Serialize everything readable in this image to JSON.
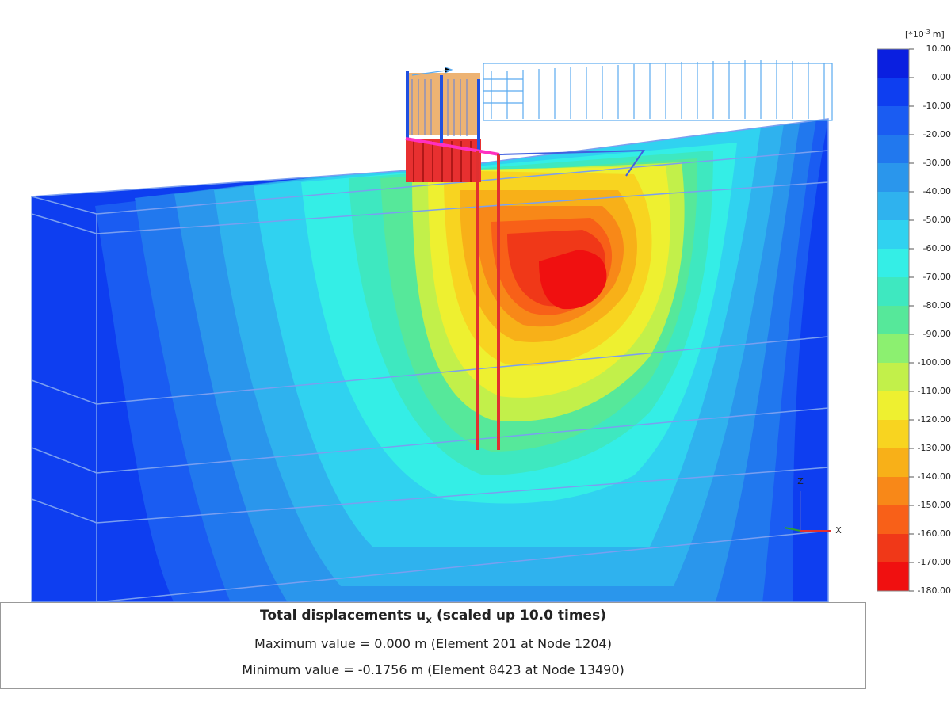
{
  "legend": {
    "unit_prefix": "[*10",
    "unit_power": "-3",
    "unit_suffix": "m]",
    "labels": [
      "10.00",
      "0.00",
      "-10.00",
      "-20.00",
      "-30.00",
      "-40.00",
      "-50.00",
      "-60.00",
      "-70.00",
      "-80.00",
      "-90.00",
      "-100.00",
      "-110.00",
      "-120.00",
      "-130.00",
      "-140.00",
      "-150.00",
      "-160.00",
      "-170.00",
      "-180.00"
    ],
    "colors": [
      "#0a1fe0",
      "#0e3ef0",
      "#1a5cf2",
      "#2178ee",
      "#2a96ec",
      "#2fb2ee",
      "#30d2f0",
      "#34eee6",
      "#3ee8c0",
      "#56e89a",
      "#8cf070",
      "#c2f04a",
      "#eef030",
      "#f8d420",
      "#f8b018",
      "#f88818",
      "#f86018",
      "#f03818",
      "#f01010"
    ]
  },
  "axes": {
    "z": "Z",
    "x": "X"
  },
  "info": {
    "title": "Total displacements u",
    "title_sub": "x",
    "title_suffix": "(scaled up 10.0 times)",
    "max_line": "Maximum value = 0.000 m (Element 201 at Node 1204)",
    "min_line": "Minimum value = -0.1756 m (Element 8423 at Node 13490)"
  }
}
